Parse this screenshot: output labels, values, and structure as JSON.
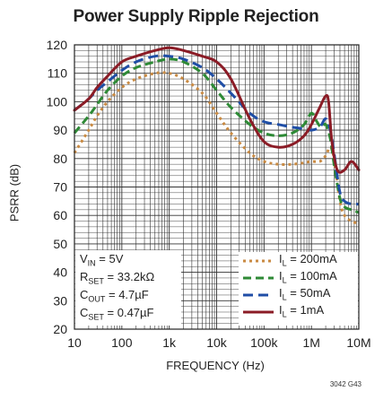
{
  "chart_data": {
    "type": "line",
    "title": "Power Supply Ripple Rejection",
    "xlabel": "FREQUENCY (Hz)",
    "ylabel": "PSRR (dB)",
    "x_scale": "log",
    "xlim": [
      10,
      10000000
    ],
    "ylim": [
      20,
      120
    ],
    "x_ticks": [
      "10",
      "100",
      "1k",
      "10k",
      "100k",
      "1M",
      "10M"
    ],
    "y_ticks": [
      "20",
      "30",
      "40",
      "50",
      "60",
      "70",
      "80",
      "90",
      "100",
      "110",
      "120"
    ],
    "grid": true,
    "legend_position": "bottom-right",
    "conditions": [
      {
        "main": "V",
        "sub": "IN",
        "rest": " = 5V"
      },
      {
        "main": "R",
        "sub": "SET",
        "rest": " = 33.2kΩ"
      },
      {
        "main": "C",
        "sub": "OUT",
        "rest": " = 4.7µF"
      },
      {
        "main": "C",
        "sub": "SET",
        "rest": " = 0.47µF"
      }
    ],
    "series": [
      {
        "name": "IL = 200mA",
        "label_main": "I",
        "label_sub": "L",
        "label_rest": " = 200mA",
        "color": "#c98a42",
        "dash": "3 4",
        "x": [
          10,
          20,
          30,
          50,
          100,
          200,
          500,
          1000,
          2000,
          5000,
          10000,
          20000,
          50000,
          100000,
          200000,
          400000,
          700000,
          1000000,
          1500000,
          2000000,
          2500000,
          3000000,
          4000000,
          5000000,
          7000000,
          10000000
        ],
        "y": [
          82,
          90,
          95,
          100,
          105,
          108,
          110,
          110,
          108,
          103,
          96,
          89,
          82,
          79,
          78,
          78,
          78.5,
          79,
          79,
          81,
          84,
          80,
          65,
          60,
          58,
          57
        ]
      },
      {
        "name": "IL = 100mA",
        "label_main": "I",
        "label_sub": "L",
        "label_rest": " = 100mA",
        "color": "#2e8a36",
        "dash": "9 5",
        "x": [
          10,
          20,
          30,
          50,
          100,
          200,
          500,
          1000,
          2000,
          5000,
          10000,
          20000,
          50000,
          100000,
          200000,
          400000,
          700000,
          1000000,
          1300000,
          1600000,
          2000000,
          2500000,
          3000000,
          4000000,
          5000000,
          7000000,
          10000000
        ],
        "y": [
          89,
          95,
          99,
          104,
          109,
          112,
          114,
          115,
          114,
          110,
          104,
          98,
          92,
          89,
          88,
          89,
          92,
          96,
          93,
          91,
          92,
          87,
          78,
          66,
          63,
          62,
          61
        ]
      },
      {
        "name": "IL = 50mA",
        "label_main": "I",
        "label_sub": "L",
        "label_rest": " = 50mA",
        "color": "#1f4ea6",
        "dash": "11 6",
        "x": [
          10,
          20,
          30,
          50,
          100,
          200,
          500,
          1000,
          2000,
          5000,
          10000,
          20000,
          50000,
          100000,
          200000,
          400000,
          700000,
          1000000,
          1500000,
          2000000,
          2500000,
          3000000,
          4000000,
          5000000,
          7000000,
          10000000
        ],
        "y": [
          97,
          101,
          104,
          107,
          111,
          114,
          116,
          116,
          115,
          112,
          108,
          103,
          96,
          93,
          92,
          91,
          90.5,
          90,
          91,
          94,
          90,
          82,
          68,
          65,
          64,
          64
        ]
      },
      {
        "name": "IL = 1mA",
        "label_main": "I",
        "label_sub": "L",
        "label_rest": " = 1mA",
        "color": "#8b1c26",
        "dash": "",
        "x": [
          10,
          20,
          30,
          50,
          100,
          200,
          500,
          1000,
          2000,
          5000,
          10000,
          20000,
          50000,
          100000,
          200000,
          400000,
          700000,
          1000000,
          1500000,
          2000000,
          2300000,
          2700000,
          3500000,
          5000000,
          7000000,
          10000000
        ],
        "y": [
          97,
          101,
          105,
          109,
          114,
          116,
          118,
          119,
          118,
          116,
          114,
          108,
          94,
          86,
          84,
          85,
          88,
          92,
          98,
          102,
          100,
          86,
          76,
          76,
          79,
          76
        ]
      }
    ],
    "figure_code": "3042 G43"
  }
}
